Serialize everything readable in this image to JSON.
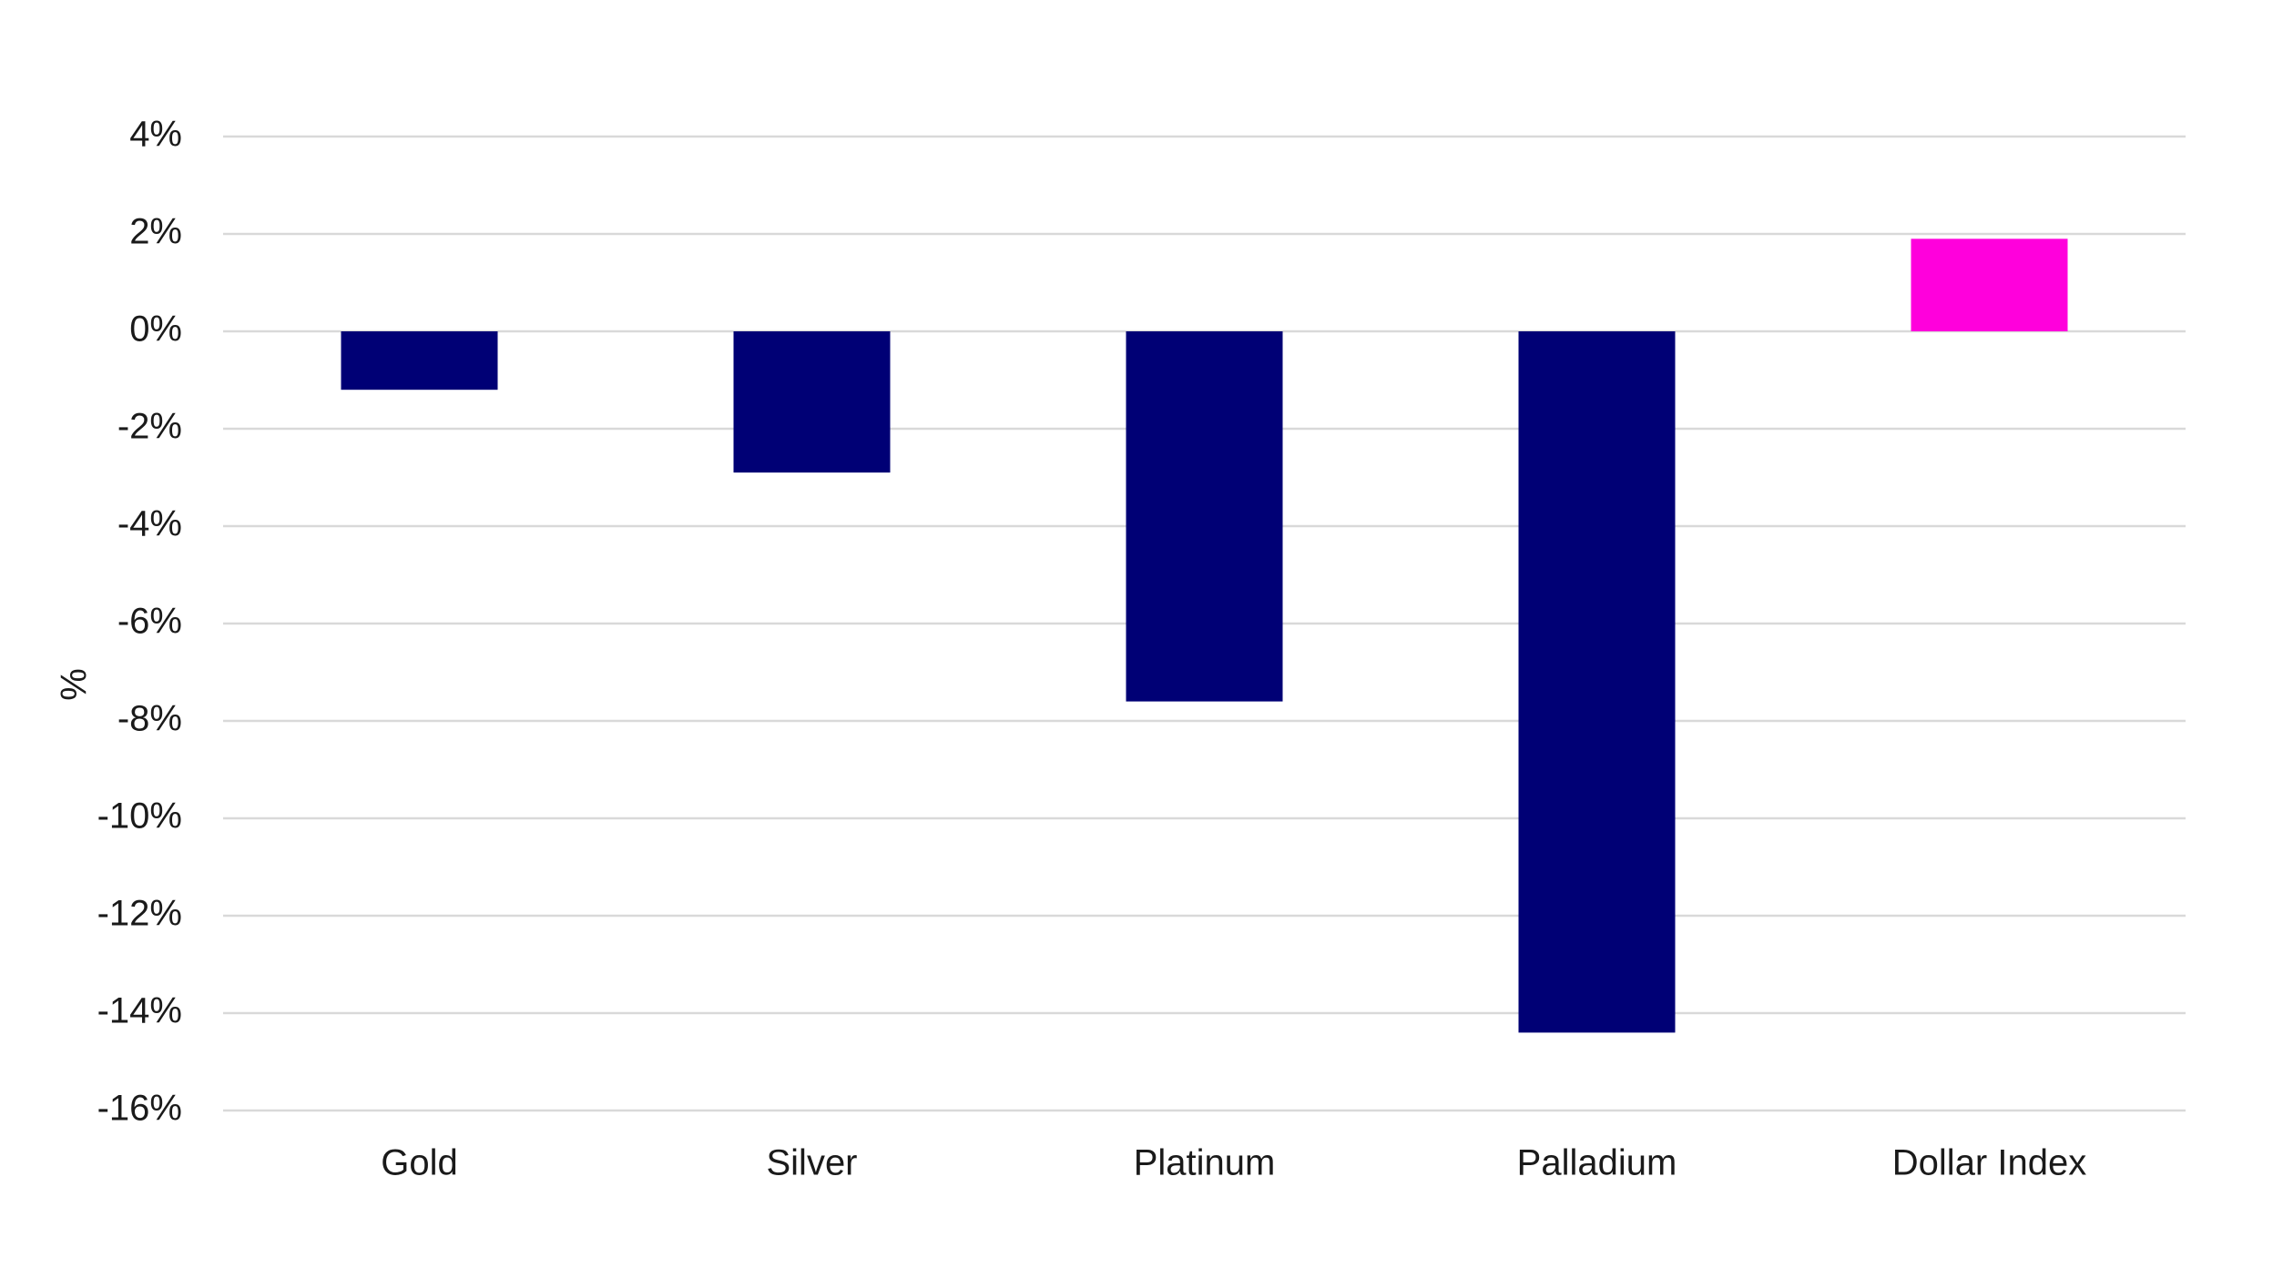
{
  "chart_data": {
    "type": "bar",
    "categories": [
      "Gold",
      "Silver",
      "Platinum",
      "Palladium",
      "Dollar Index"
    ],
    "values": [
      -1.2,
      -2.9,
      -7.6,
      -14.4,
      1.9
    ],
    "colors": [
      "#000075",
      "#000075",
      "#000075",
      "#000075",
      "#ff00dc"
    ],
    "title": "",
    "xlabel": "",
    "ylabel": "%",
    "ylim": [
      -16,
      4
    ],
    "yticks": [
      4,
      2,
      0,
      -2,
      -4,
      -6,
      -8,
      -10,
      -12,
      -14,
      -16
    ],
    "ytick_labels": [
      "4%",
      "2%",
      "0%",
      "-2%",
      "-4%",
      "-6%",
      "-8%",
      "-10%",
      "-12%",
      "-14%",
      "-16%"
    ],
    "grid": true,
    "legend": "none"
  }
}
